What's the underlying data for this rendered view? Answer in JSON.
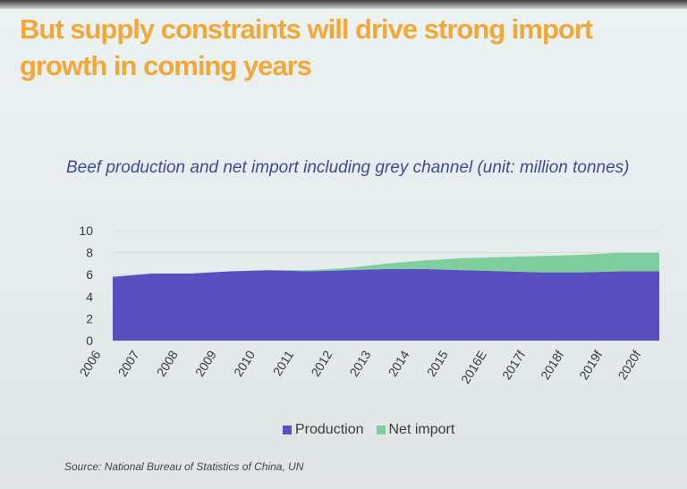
{
  "slide": {
    "title": "But supply constraints will drive strong import growth in coming years",
    "source": "Source: National Bureau of Statistics of China, UN"
  },
  "chart_data": {
    "type": "area",
    "stacked": true,
    "title": "Beef production and net import including grey channel (unit: million tonnes)",
    "xlabel": "",
    "ylabel": "",
    "categories": [
      "2006",
      "2007",
      "2008",
      "2009",
      "2010",
      "2011",
      "2012",
      "2013",
      "2014",
      "2015",
      "2016E",
      "2017f",
      "2018f",
      "2019f",
      "2020f"
    ],
    "series": [
      {
        "name": "Production",
        "color": "#5a4fc0",
        "values": [
          5.8,
          6.1,
          6.1,
          6.3,
          6.4,
          6.3,
          6.4,
          6.5,
          6.5,
          6.4,
          6.3,
          6.2,
          6.2,
          6.3,
          6.3
        ]
      },
      {
        "name": "Net import",
        "color": "#7fcf9e",
        "values": [
          0.0,
          0.0,
          0.0,
          0.0,
          0.0,
          0.1,
          0.2,
          0.5,
          0.8,
          1.1,
          1.3,
          1.5,
          1.6,
          1.7,
          1.7
        ]
      }
    ],
    "yticks": [
      "10",
      "8",
      "6",
      "4",
      "2",
      "0"
    ],
    "ylim": [
      0,
      10
    ],
    "grid": true,
    "legend": "bottom-center"
  }
}
